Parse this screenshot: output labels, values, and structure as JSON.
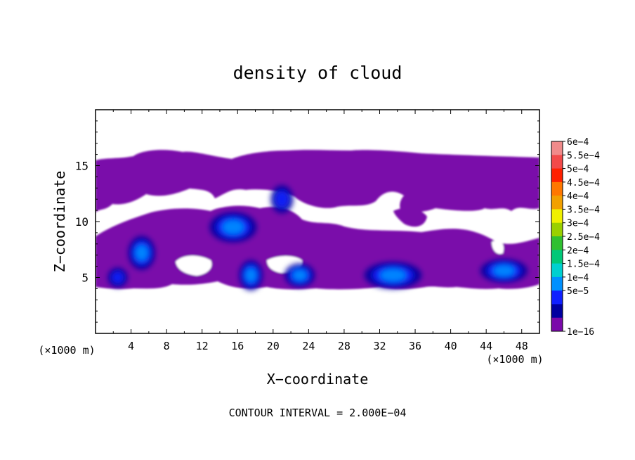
{
  "chart_data": {
    "type": "heatmap",
    "title": "density of cloud",
    "xlabel": "X−coordinate",
    "ylabel": "Z−coordinate",
    "x_unit": "(×1000 m)",
    "z_unit": "(×1000 m)",
    "footer": "CONTOUR INTERVAL = 2.000E−04",
    "xlim": [
      0,
      50
    ],
    "ylim": [
      0,
      20
    ],
    "x_ticks": [
      "4",
      "8",
      "12",
      "16",
      "20",
      "24",
      "28",
      "32",
      "36",
      "40",
      "44",
      "48"
    ],
    "y_ticks": [
      "5",
      "10",
      "15"
    ],
    "colorbar": {
      "labels": [
        "6e−4",
        "5.5e−4",
        "5e−4",
        "4.5e−4",
        "4e−4",
        "3.5e−4",
        "3e−4",
        "2.5e−4",
        "2e−4",
        "1.5e−4",
        "1e−4",
        "5e−5",
        "1e−16"
      ],
      "colors": [
        "#f08a8a",
        "#f24a4a",
        "#ff2000",
        "#ff7700",
        "#f2a000",
        "#f0f000",
        "#9ad000",
        "#30c030",
        "#00c878",
        "#00d0d0",
        "#0090ff",
        "#1020ff",
        "#0000a0",
        "#7a0aaa"
      ]
    },
    "features": [
      {
        "kind": "cloud-layer",
        "x": [
          0,
          50
        ],
        "z": [
          12.5,
          17
        ],
        "value": "1e−16"
      },
      {
        "kind": "cloud-layer",
        "x": [
          0,
          50
        ],
        "z": [
          4.3,
          9
        ],
        "value": "1e−16"
      },
      {
        "kind": "core",
        "x": 5.2,
        "z": 7.2,
        "peak": "1e−4"
      },
      {
        "kind": "core",
        "x": 15.5,
        "z": 9.5,
        "peak": "1e−4"
      },
      {
        "kind": "core",
        "x": 17.5,
        "z": 5.2,
        "peak": "1e−4"
      },
      {
        "kind": "core",
        "x": 23,
        "z": 5.2,
        "peak": "1e−4"
      },
      {
        "kind": "core",
        "x": 33.5,
        "z": 5.2,
        "peak": "1e−4"
      },
      {
        "kind": "core",
        "x": 46,
        "z": 5.6,
        "peak": "1e−4"
      },
      {
        "kind": "core",
        "x": 2.5,
        "z": 5,
        "peak": "5e−5"
      },
      {
        "kind": "core",
        "x": 21,
        "z": 12,
        "peak": "5e−5"
      }
    ]
  }
}
